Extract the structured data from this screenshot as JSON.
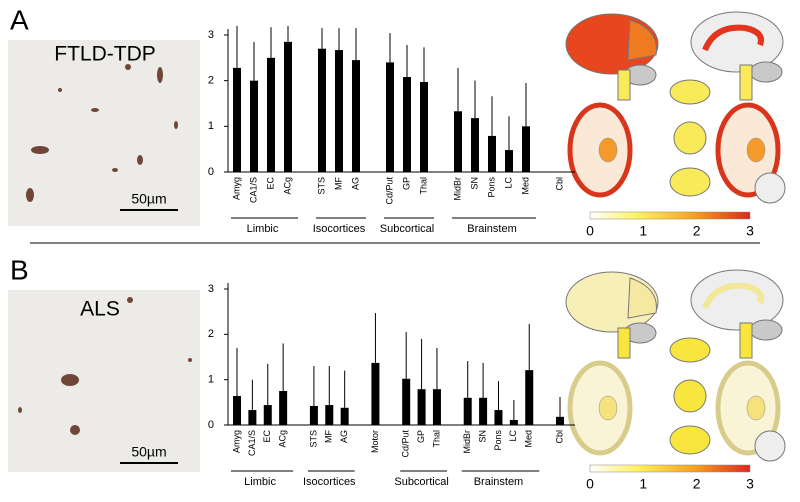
{
  "panels": [
    {
      "letter": "A",
      "image_label": "FTLD-TDP",
      "scale_bar": "50µm",
      "colorbar_ticks": [
        0,
        1,
        2,
        3
      ]
    },
    {
      "letter": "B",
      "image_label": "ALS",
      "scale_bar": "50µm",
      "colorbar_ticks": [
        0,
        1,
        2,
        3
      ]
    }
  ],
  "chart_data": [
    {
      "type": "bar",
      "color": "#000000",
      "ylim": [
        0,
        3
      ],
      "yticks": [
        0,
        1,
        2,
        3
      ],
      "groups": [
        {
          "label": "Limbic",
          "categories": [
            "Amyg",
            "CA1/S",
            "EC",
            "ACg"
          ],
          "values": [
            2.28,
            2.0,
            2.5,
            2.85
          ],
          "errors": [
            0.92,
            0.85,
            0.67,
            0.35
          ]
        },
        {
          "label": "Isocortices",
          "categories": [
            "STS",
            "MF",
            "AG"
          ],
          "values": [
            2.7,
            2.67,
            2.45
          ],
          "errors": [
            0.45,
            0.48,
            0.7
          ]
        },
        {
          "label": "Subcortical",
          "categories": [
            "Cd/Put",
            "GP",
            "Thal"
          ],
          "values": [
            2.4,
            2.08,
            1.97
          ],
          "errors": [
            0.64,
            0.7,
            0.76
          ]
        },
        {
          "label": "Brainstem",
          "categories": [
            "MidBr",
            "SN",
            "Pons",
            "LC",
            "Med"
          ],
          "values": [
            1.33,
            1.18,
            0.79,
            0.48,
            1.0
          ],
          "errors": [
            0.95,
            0.82,
            0.87,
            0.74,
            0.95
          ]
        },
        {
          "categories": [
            "Cbl"
          ],
          "values": [
            0
          ],
          "errors": [
            0
          ]
        }
      ]
    },
    {
      "type": "bar",
      "color": "#000000",
      "ylim": [
        0,
        3
      ],
      "yticks": [
        0,
        1,
        2,
        3
      ],
      "groups": [
        {
          "label": "Limbic",
          "categories": [
            "Amyg",
            "CA1/S",
            "EC",
            "ACg"
          ],
          "values": [
            0.64,
            0.33,
            0.44,
            0.75
          ],
          "errors": [
            1.06,
            0.67,
            0.91,
            1.05
          ]
        },
        {
          "label": "Isocortices",
          "categories": [
            "STS",
            "MF",
            "AG"
          ],
          "values": [
            0.42,
            0.44,
            0.38
          ],
          "errors": [
            0.88,
            0.86,
            0.82
          ]
        },
        {
          "categories": [
            "Motor"
          ],
          "values": [
            1.37
          ],
          "errors": [
            1.1
          ]
        },
        {
          "label": "Subcortical",
          "categories": [
            "Cd/Put",
            "GP",
            "Thal"
          ],
          "values": [
            1.02,
            0.79,
            0.79
          ],
          "errors": [
            1.03,
            1.11,
            0.91
          ]
        },
        {
          "label": "Brainstem",
          "categories": [
            "MidBr",
            "SN",
            "Pons",
            "LC",
            "Med"
          ],
          "values": [
            0.6,
            0.6,
            0.33,
            0.11,
            1.21
          ],
          "errors": [
            0.81,
            0.77,
            0.64,
            0.44,
            1.02
          ]
        },
        {
          "categories": [
            "Cbl"
          ],
          "values": [
            0.18
          ],
          "errors": [
            0.44
          ]
        }
      ]
    }
  ]
}
